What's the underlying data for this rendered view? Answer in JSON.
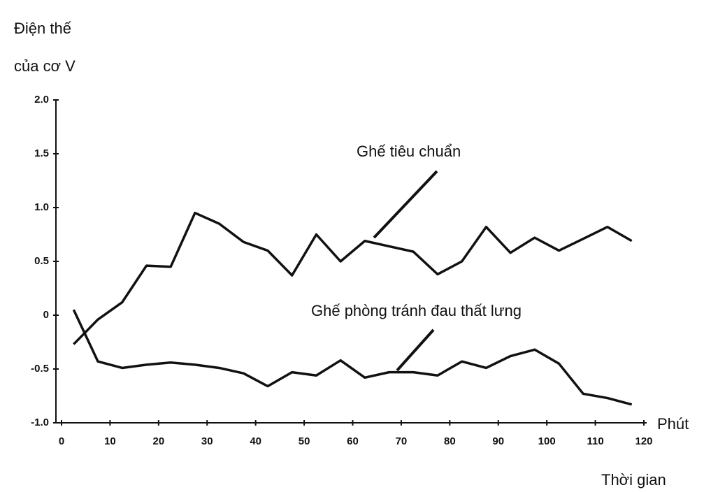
{
  "chart_data": {
    "type": "line",
    "y_label_lines": [
      "Điện thế",
      "của cơ V"
    ],
    "x_unit": "Phút",
    "x_label": "Thời gian",
    "x": [
      2.5,
      7.5,
      12.5,
      17.5,
      22.5,
      27.5,
      32.5,
      37.5,
      42.5,
      47.5,
      52.5,
      57.5,
      62.5,
      67.5,
      72.5,
      77.5,
      82.5,
      87.5,
      92.5,
      97.5,
      102.5,
      107.5,
      112.5,
      117.5
    ],
    "series": [
      {
        "name": "Ghế tiêu chuẩn",
        "color": "#111111",
        "values": [
          -0.27,
          -0.04,
          0.12,
          0.46,
          0.45,
          0.95,
          0.85,
          0.68,
          0.6,
          0.37,
          0.75,
          0.5,
          0.69,
          0.64,
          0.59,
          0.38,
          0.5,
          0.82,
          0.58,
          0.72,
          0.6,
          0.71,
          0.82,
          0.69
        ]
      },
      {
        "name": "Ghế phòng tránh đau thất lưng",
        "color": "#111111",
        "values": [
          0.05,
          -0.43,
          -0.49,
          -0.46,
          -0.44,
          -0.46,
          -0.49,
          -0.54,
          -0.66,
          -0.53,
          -0.56,
          -0.42,
          -0.58,
          -0.53,
          -0.53,
          -0.56,
          -0.43,
          -0.49,
          -0.38,
          -0.32,
          -0.45,
          -0.73,
          -0.77,
          -0.83
        ]
      }
    ],
    "xlim": [
      0,
      120
    ],
    "xticks": [
      0,
      10,
      20,
      30,
      40,
      50,
      60,
      70,
      80,
      90,
      100,
      110,
      120
    ],
    "ylim": [
      -1,
      2
    ],
    "yticks": [
      {
        "value": 2,
        "label": "2.0"
      },
      {
        "value": 1.5,
        "label": "1.5"
      },
      {
        "value": 1,
        "label": "1.0"
      },
      {
        "value": 0.5,
        "label": "0.5"
      },
      0,
      {
        "value": -0.5,
        "label": "-0.5"
      },
      {
        "value": -1,
        "label": "-1.0"
      }
    ]
  }
}
